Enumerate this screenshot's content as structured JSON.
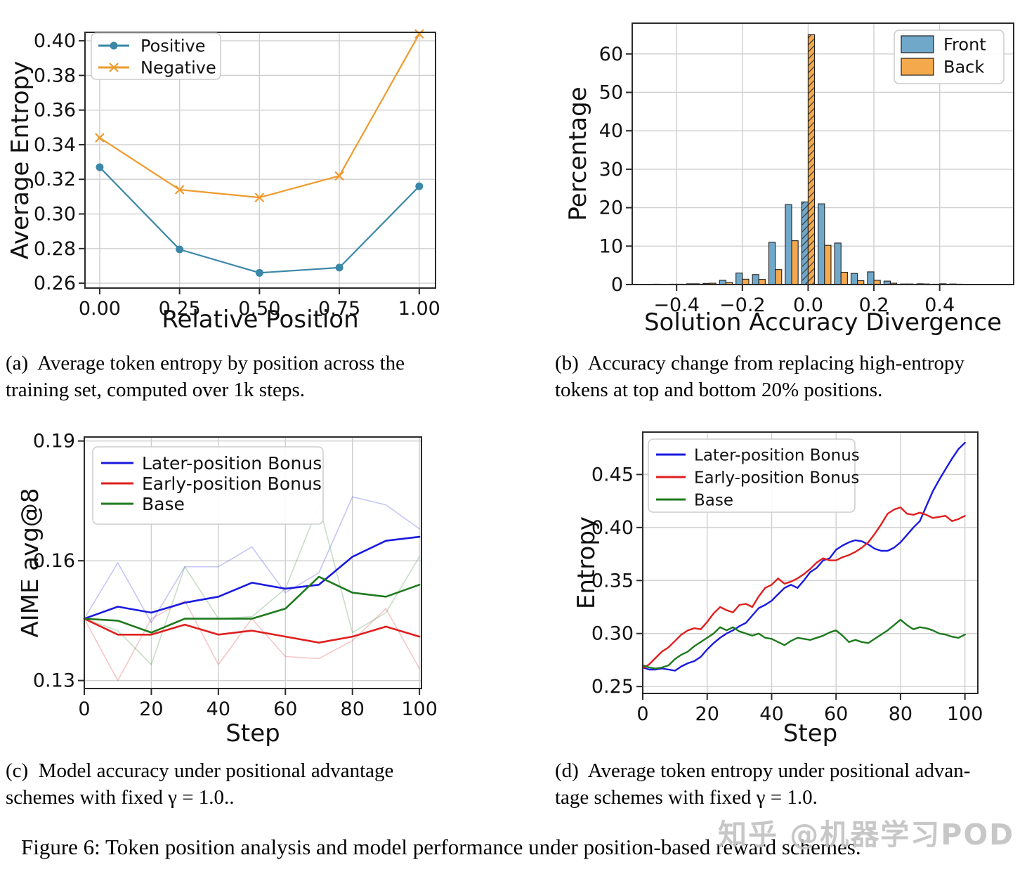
{
  "figure": {
    "caption": "Figure 6: Token position analysis and model performance under position-based reward schemes.",
    "watermark": "知乎 @机器学习POD"
  },
  "subcaptions": {
    "a": [
      "(a)  Average token entropy by position across the",
      "training set, computed over 1k steps."
    ],
    "b": [
      "(b)  Accuracy change from replacing high-entropy",
      "tokens at top and bottom 20% positions."
    ],
    "c": [
      "(c)  Model accuracy under positional advantage",
      "schemes with fixed γ = 1.0.."
    ],
    "d": [
      "(d)  Average token entropy under positional advan-",
      "tage schemes with fixed γ = 1.0."
    ]
  },
  "chart_data": [
    {
      "id": "a",
      "type": "line",
      "title": "",
      "xlabel": "Relative Position",
      "ylabel": "Average Entropy",
      "xlim": [
        -0.046,
        1.051
      ],
      "ylim": [
        0.2572,
        0.4049
      ],
      "grid": true,
      "xticks": [
        {
          "v": 0.0,
          "label": "0.00"
        },
        {
          "v": 0.25,
          "label": "0.25"
        },
        {
          "v": 0.5,
          "label": "0.50"
        },
        {
          "v": 0.75,
          "label": "0.75"
        },
        {
          "v": 1.0,
          "label": "1.00"
        }
      ],
      "yticks": [
        {
          "v": 0.26,
          "label": "0.26"
        },
        {
          "v": 0.28,
          "label": "0.28"
        },
        {
          "v": 0.3,
          "label": "0.30"
        },
        {
          "v": 0.32,
          "label": "0.32"
        },
        {
          "v": 0.34,
          "label": "0.34"
        },
        {
          "v": 0.36,
          "label": "0.36"
        },
        {
          "v": 0.38,
          "label": "0.38"
        },
        {
          "v": 0.4,
          "label": "0.40"
        }
      ],
      "x": [
        0.0,
        0.25,
        0.5,
        0.75,
        1.0
      ],
      "series": [
        {
          "name": "Positive",
          "color": "#3a87a8",
          "marker": "circle",
          "width": 2.2,
          "values": [
            0.327,
            0.2795,
            0.266,
            0.269,
            0.316
          ]
        },
        {
          "name": "Negative",
          "color": "#ee9b2e",
          "marker": "x",
          "width": 2.2,
          "values": [
            0.344,
            0.314,
            0.3095,
            0.322,
            0.404
          ]
        }
      ],
      "legend": {
        "position": "top-left",
        "items": [
          {
            "label": "Positive",
            "color": "#3a87a8",
            "marker": "circle"
          },
          {
            "label": "Negative",
            "color": "#ee9b2e",
            "marker": "x"
          }
        ]
      }
    },
    {
      "id": "b",
      "type": "bar",
      "title": "",
      "xlabel": "Solution Accuracy Divergence",
      "ylabel": "Percentage",
      "xlim": [
        -0.535,
        0.625
      ],
      "ylim": [
        0,
        68
      ],
      "grid": true,
      "xticks": [
        {
          "v": -0.4,
          "label": "−0.4"
        },
        {
          "v": -0.2,
          "label": "−0.2"
        },
        {
          "v": 0.0,
          "label": "0.0"
        },
        {
          "v": 0.2,
          "label": "0.2"
        },
        {
          "v": 0.4,
          "label": "0.4"
        }
      ],
      "yticks": [
        {
          "v": 0,
          "label": "0"
        },
        {
          "v": 10,
          "label": "10"
        },
        {
          "v": 20,
          "label": "20"
        },
        {
          "v": 30,
          "label": "30"
        },
        {
          "v": 40,
          "label": "40"
        },
        {
          "v": 50,
          "label": "50"
        },
        {
          "v": 60,
          "label": "60"
        }
      ],
      "bin_centers": [
        -0.45,
        -0.4,
        -0.35,
        -0.3,
        -0.25,
        -0.2,
        -0.15,
        -0.1,
        -0.05,
        0.0,
        0.05,
        0.1,
        0.15,
        0.2,
        0.25,
        0.3,
        0.35,
        0.4,
        0.45
      ],
      "bar_width": 0.0195,
      "hatched_bin_index": 9,
      "series": [
        {
          "name": "Front",
          "color": "#70a8c9",
          "values": [
            0.1,
            0.1,
            0.2,
            0.3,
            1.1,
            3.0,
            2.6,
            11.0,
            20.8,
            21.5,
            21.0,
            10.8,
            2.9,
            3.3,
            0.9,
            0.15,
            0.2,
            0.1,
            0.15
          ]
        },
        {
          "name": "Back",
          "color": "#f4a94d",
          "values": [
            0.05,
            0.1,
            0.2,
            0.35,
            0.55,
            1.4,
            1.35,
            3.9,
            11.4,
            65.0,
            10.2,
            3.2,
            1.0,
            1.1,
            0.35,
            0.15,
            0.15,
            0.2,
            0.1
          ]
        }
      ],
      "legend": {
        "position": "top-right",
        "items": [
          {
            "label": "Front",
            "color": "#70a8c9",
            "marker": "patch"
          },
          {
            "label": "Back",
            "color": "#f4a94d",
            "marker": "patch"
          }
        ]
      }
    },
    {
      "id": "c",
      "type": "line",
      "title": "",
      "xlabel": "Step",
      "ylabel": "AIME avg@8",
      "xlim": [
        0,
        100.6
      ],
      "ylim": [
        0.128,
        0.191
      ],
      "grid": true,
      "xticks": [
        {
          "v": 0,
          "label": "0"
        },
        {
          "v": 20,
          "label": "20"
        },
        {
          "v": 40,
          "label": "40"
        },
        {
          "v": 60,
          "label": "60"
        },
        {
          "v": 80,
          "label": "80"
        },
        {
          "v": 100,
          "label": "100"
        }
      ],
      "yticks": [
        {
          "v": 0.13,
          "label": "0.13"
        },
        {
          "v": 0.16,
          "label": "0.16"
        },
        {
          "v": 0.19,
          "label": "0.19"
        }
      ],
      "x": [
        0,
        10,
        20,
        30,
        40,
        50,
        60,
        70,
        80,
        90,
        100
      ],
      "series": [
        {
          "name": "Later-position Bonus (raw)",
          "color": "#1a1adf",
          "width": 1.6,
          "opacity": 0.25,
          "values": [
            0.1455,
            0.1595,
            0.1445,
            0.1585,
            0.1585,
            0.1635,
            0.152,
            0.157,
            0.176,
            0.174,
            0.168
          ]
        },
        {
          "name": "Early-position Bonus (raw)",
          "color": "#e01f1f",
          "width": 1.6,
          "opacity": 0.25,
          "values": [
            0.1455,
            0.13,
            0.1455,
            0.15,
            0.134,
            0.1455,
            0.136,
            0.1355,
            0.14,
            0.148,
            0.133
          ]
        },
        {
          "name": "Base (raw)",
          "color": "#1e7a1e",
          "width": 1.6,
          "opacity": 0.25,
          "values": [
            0.1455,
            0.1425,
            0.134,
            0.1585,
            0.1455,
            0.146,
            0.153,
            0.174,
            0.142,
            0.147,
            0.161
          ]
        },
        {
          "name": "Later-position Bonus",
          "color": "#1a1adf",
          "width": 2.6,
          "values": [
            0.1455,
            0.1485,
            0.147,
            0.1495,
            0.151,
            0.1545,
            0.153,
            0.154,
            0.161,
            0.165,
            0.166
          ]
        },
        {
          "name": "Early-position Bonus",
          "color": "#e01f1f",
          "width": 2.6,
          "values": [
            0.1455,
            0.1415,
            0.1415,
            0.144,
            0.1415,
            0.1425,
            0.141,
            0.1395,
            0.141,
            0.1435,
            0.141
          ]
        },
        {
          "name": "Base",
          "color": "#1e7a1e",
          "width": 2.6,
          "values": [
            0.1455,
            0.145,
            0.142,
            0.1455,
            0.1455,
            0.1455,
            0.148,
            0.156,
            0.152,
            0.151,
            0.154
          ]
        }
      ],
      "legend": {
        "position": "top-left",
        "items": [
          {
            "label": "Later-position Bonus",
            "color": "#1a1adf",
            "marker": "line"
          },
          {
            "label": "Early-position Bonus",
            "color": "#e01f1f",
            "marker": "line"
          },
          {
            "label": "Base",
            "color": "#1e7a1e",
            "marker": "line"
          }
        ]
      }
    },
    {
      "id": "d",
      "type": "line",
      "title": "",
      "xlabel": "Step",
      "ylabel": "Entropy",
      "xlim": [
        0,
        104
      ],
      "ylim": [
        0.2435,
        0.49
      ],
      "grid": true,
      "xticks": [
        {
          "v": 0,
          "label": "0"
        },
        {
          "v": 20,
          "label": "20"
        },
        {
          "v": 40,
          "label": "40"
        },
        {
          "v": 60,
          "label": "60"
        },
        {
          "v": 80,
          "label": "80"
        },
        {
          "v": 100,
          "label": "100"
        }
      ],
      "yticks": [
        {
          "v": 0.25,
          "label": "0.25"
        },
        {
          "v": 0.3,
          "label": "0.30"
        },
        {
          "v": 0.35,
          "label": "0.35"
        },
        {
          "v": 0.4,
          "label": "0.40"
        },
        {
          "v": 0.45,
          "label": "0.45"
        }
      ],
      "x": [
        0,
        2,
        4,
        6,
        8,
        10,
        12,
        14,
        16,
        18,
        20,
        22,
        24,
        26,
        28,
        30,
        32,
        34,
        36,
        38,
        40,
        42,
        44,
        46,
        48,
        50,
        52,
        54,
        56,
        58,
        60,
        62,
        64,
        66,
        68,
        70,
        72,
        74,
        76,
        78,
        80,
        82,
        84,
        86,
        88,
        90,
        92,
        94,
        96,
        98,
        100
      ],
      "series": [
        {
          "name": "Later-position Bonus",
          "color": "#1a1adf",
          "width": 2.4,
          "values": [
            0.268,
            0.266,
            0.266,
            0.267,
            0.266,
            0.265,
            0.269,
            0.272,
            0.274,
            0.278,
            0.285,
            0.291,
            0.296,
            0.3,
            0.303,
            0.307,
            0.31,
            0.317,
            0.324,
            0.327,
            0.331,
            0.337,
            0.343,
            0.346,
            0.343,
            0.35,
            0.358,
            0.362,
            0.369,
            0.371,
            0.379,
            0.383,
            0.386,
            0.388,
            0.387,
            0.384,
            0.38,
            0.378,
            0.378,
            0.381,
            0.386,
            0.393,
            0.4,
            0.406,
            0.42,
            0.434,
            0.445,
            0.455,
            0.465,
            0.474,
            0.48
          ]
        },
        {
          "name": "Early-position Bonus",
          "color": "#e01f1f",
          "width": 2.4,
          "values": [
            0.267,
            0.271,
            0.277,
            0.283,
            0.287,
            0.293,
            0.299,
            0.303,
            0.305,
            0.304,
            0.311,
            0.319,
            0.325,
            0.322,
            0.32,
            0.327,
            0.328,
            0.325,
            0.335,
            0.343,
            0.346,
            0.352,
            0.347,
            0.349,
            0.352,
            0.356,
            0.361,
            0.367,
            0.371,
            0.369,
            0.369,
            0.372,
            0.374,
            0.377,
            0.381,
            0.386,
            0.394,
            0.403,
            0.413,
            0.417,
            0.419,
            0.413,
            0.412,
            0.414,
            0.412,
            0.409,
            0.41,
            0.411,
            0.406,
            0.408,
            0.411
          ]
        },
        {
          "name": "Base",
          "color": "#1e7a1e",
          "width": 2.4,
          "values": [
            0.27,
            0.268,
            0.267,
            0.268,
            0.27,
            0.276,
            0.28,
            0.283,
            0.288,
            0.292,
            0.296,
            0.3,
            0.306,
            0.303,
            0.306,
            0.302,
            0.3,
            0.298,
            0.3,
            0.296,
            0.295,
            0.292,
            0.289,
            0.293,
            0.296,
            0.295,
            0.294,
            0.296,
            0.298,
            0.301,
            0.303,
            0.298,
            0.292,
            0.294,
            0.292,
            0.291,
            0.295,
            0.299,
            0.303,
            0.308,
            0.313,
            0.308,
            0.304,
            0.306,
            0.305,
            0.303,
            0.3,
            0.299,
            0.297,
            0.296,
            0.299
          ]
        }
      ],
      "legend": {
        "position": "top-left",
        "items": [
          {
            "label": "Later-position Bonus",
            "color": "#1a1adf",
            "marker": "line"
          },
          {
            "label": "Early-position Bonus",
            "color": "#e01f1f",
            "marker": "line"
          },
          {
            "label": "Base",
            "color": "#1e7a1e",
            "marker": "line"
          }
        ]
      }
    }
  ]
}
